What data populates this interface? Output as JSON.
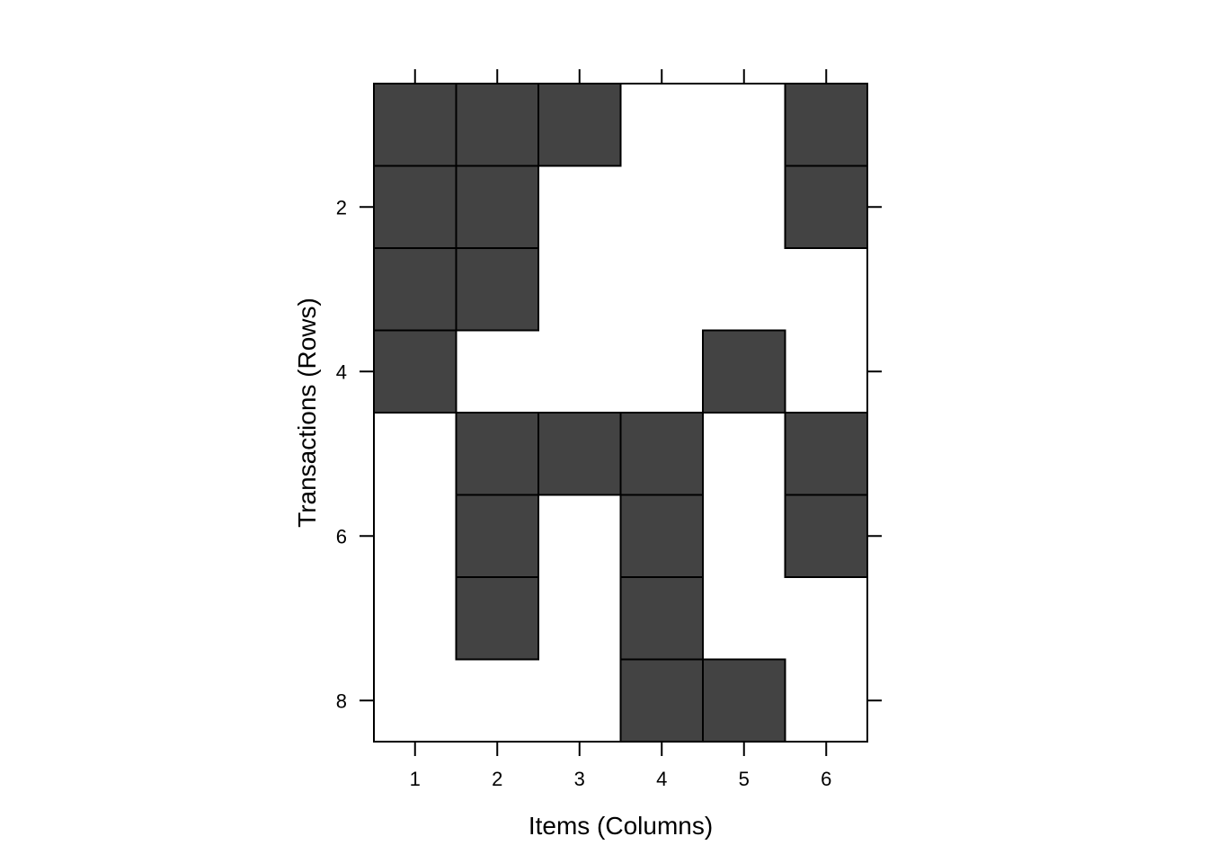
{
  "chart_data": {
    "type": "heatmap",
    "xlabel": "Items (Columns)",
    "ylabel": "Transactions (Rows)",
    "x_ticks": [
      "1",
      "2",
      "3",
      "4",
      "5",
      "6"
    ],
    "y_ticks": [
      "2",
      "4",
      "6",
      "8"
    ],
    "rows": 8,
    "cols": 6,
    "matrix": [
      [
        1,
        1,
        1,
        0,
        0,
        1
      ],
      [
        1,
        1,
        0,
        0,
        0,
        1
      ],
      [
        1,
        1,
        0,
        0,
        0,
        0
      ],
      [
        1,
        0,
        0,
        0,
        1,
        0
      ],
      [
        0,
        1,
        1,
        1,
        0,
        1
      ],
      [
        0,
        1,
        0,
        1,
        0,
        1
      ],
      [
        0,
        1,
        0,
        1,
        0,
        0
      ],
      [
        0,
        0,
        0,
        1,
        1,
        0
      ]
    ],
    "filled_color": "#434343",
    "empty_color": "#ffffff",
    "grid": false
  }
}
